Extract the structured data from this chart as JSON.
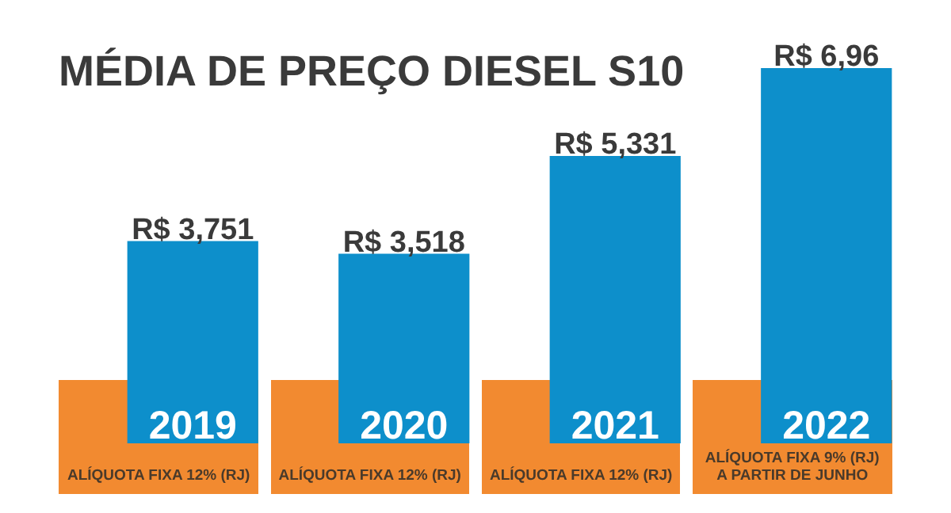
{
  "chart_data": {
    "type": "bar",
    "title": "MÉDIA DE PREÇO DIESEL S10",
    "categories": [
      "2019",
      "2020",
      "2021",
      "2022"
    ],
    "values": [
      3.751,
      3.518,
      5.331,
      6.96
    ],
    "value_labels": [
      "R$ 3,751",
      "R$ 3,518",
      "R$ 5,331",
      "R$ 6,96"
    ],
    "color": "#0d8fcb",
    "annotations": [
      "ALÍQUOTA FIXA 12% (RJ)",
      "ALÍQUOTA FIXA 12% (RJ)",
      "ALÍQUOTA FIXA 12% (RJ)",
      "ALÍQUOTA FIXA 9% (RJ)\nA PARTIR DE JUNHO"
    ],
    "data_labels": false
  }
}
